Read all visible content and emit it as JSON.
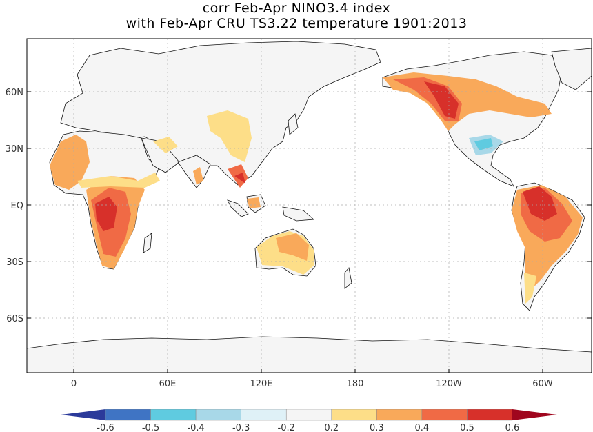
{
  "title": {
    "line1": "corr Feb-Apr NINO3.4 index",
    "line2": "with Feb-Apr CRU TS3.22 temperature 1901:2013"
  },
  "map": {
    "projection": "equirectangular",
    "lon_range": [
      -30,
      330
    ],
    "lat_range": [
      -90,
      90
    ],
    "lat_ticks": [
      {
        "value": 60,
        "label": "60N"
      },
      {
        "value": 30,
        "label": "30N"
      },
      {
        "value": 0,
        "label": "EQ"
      },
      {
        "value": -30,
        "label": "30S"
      },
      {
        "value": -60,
        "label": "60S"
      }
    ],
    "lon_ticks": [
      {
        "value": 0,
        "label": "0"
      },
      {
        "value": 60,
        "label": "60E"
      },
      {
        "value": 120,
        "label": "120E"
      },
      {
        "value": 180,
        "label": "180"
      },
      {
        "value": 240,
        "label": "120W"
      },
      {
        "value": 300,
        "label": "60W"
      }
    ],
    "land_color": "#f5f5f5",
    "grid": "dotted"
  },
  "colorbar": {
    "labels": [
      "-0.6",
      "-0.5",
      "-0.4",
      "-0.3",
      "-0.2",
      "0.2",
      "0.3",
      "0.4",
      "0.5",
      "0.6"
    ],
    "colors": [
      "#2b3a9a",
      "#3f74c4",
      "#5fcbe0",
      "#a8d8e8",
      "#dff1f7",
      "#f5f5f5",
      "#fdde88",
      "#f9a95a",
      "#f06a45",
      "#d7302a",
      "#a0061e"
    ]
  }
}
